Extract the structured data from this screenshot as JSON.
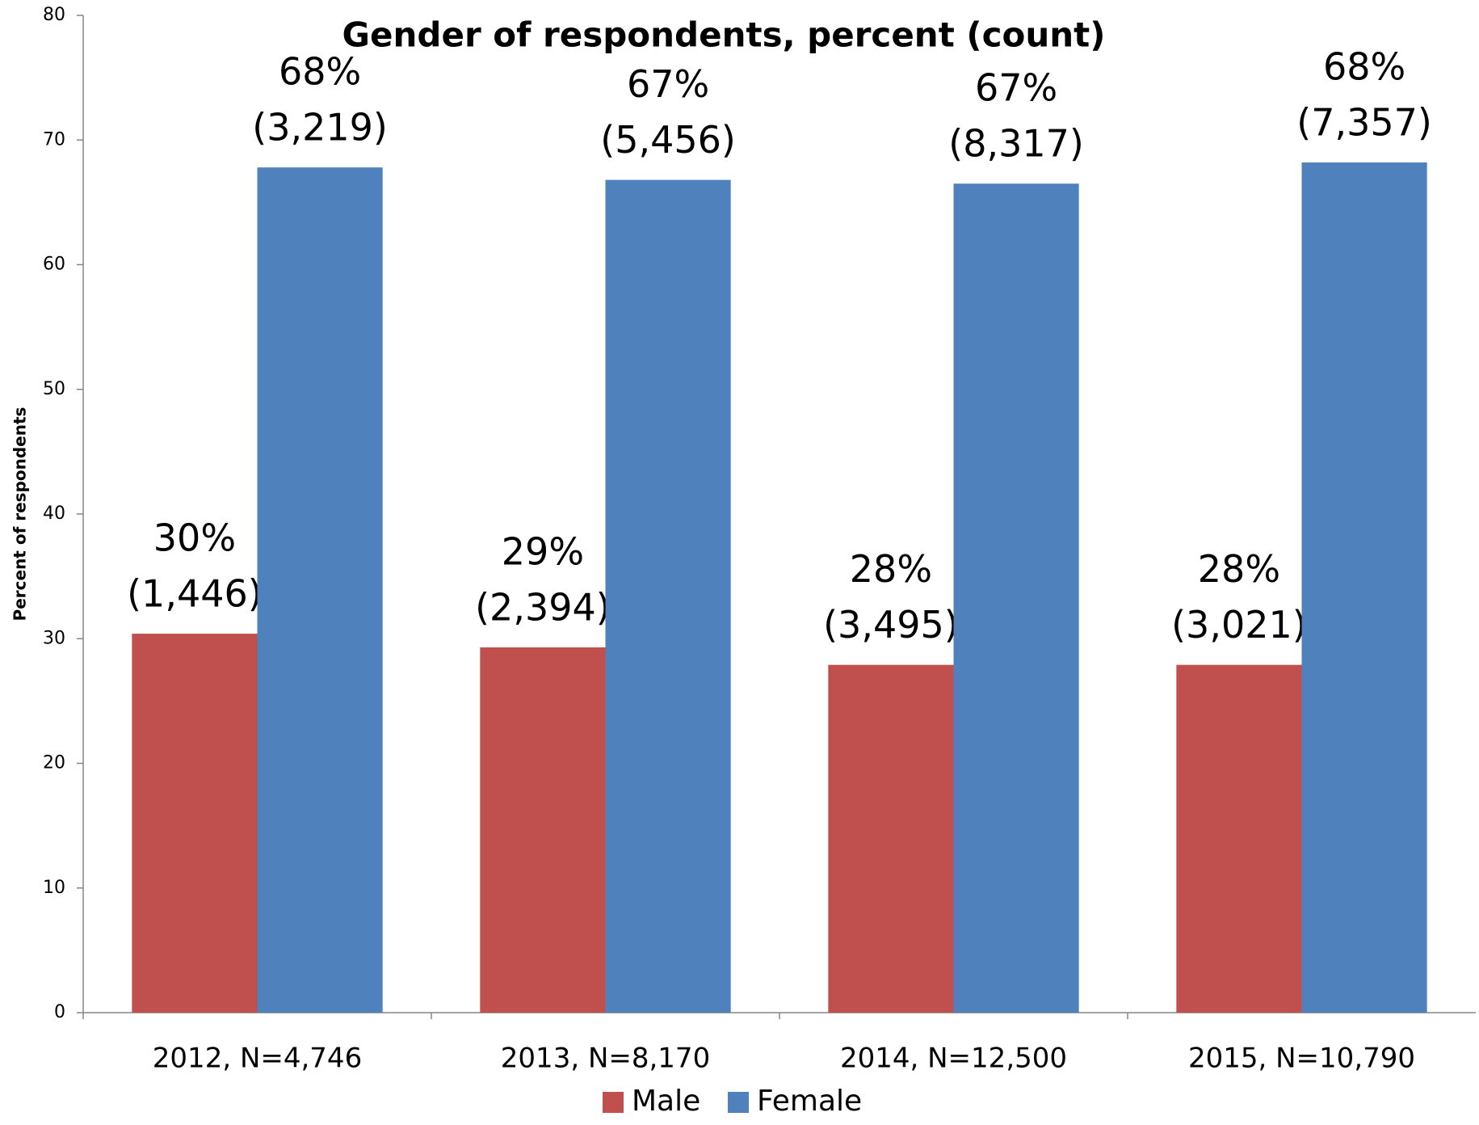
{
  "chart_data": {
    "type": "bar",
    "title": "Gender of respondents, percent (count)",
    "y_label": "Percent of respondents",
    "categories": [
      "2012, N=4,746",
      "2013, N=8,170",
      "2014, N=12,500",
      "2015, N=10,790"
    ],
    "series": [
      {
        "name": "Male",
        "color": "#c0504d",
        "values": [
          30.4,
          29.3,
          27.9,
          27.9
        ],
        "value_labels": [
          "30%",
          "29%",
          "28%",
          "28%"
        ],
        "count_labels": [
          "(1,446)",
          "(2,394)",
          "(3,495)",
          "(3,021)"
        ]
      },
      {
        "name": "Female",
        "color": "#4f81bd",
        "values": [
          67.8,
          66.8,
          66.5,
          68.2
        ],
        "value_labels": [
          "68%",
          "67%",
          "67%",
          "68%"
        ],
        "count_labels": [
          "(3,219)",
          "(5,456)",
          "(8,317)",
          "(7,357)"
        ]
      }
    ],
    "ylim": [
      0,
      80
    ],
    "yticks": [
      0,
      10,
      20,
      30,
      40,
      50,
      60,
      70,
      80
    ],
    "grid": false,
    "legend": "bottom"
  }
}
